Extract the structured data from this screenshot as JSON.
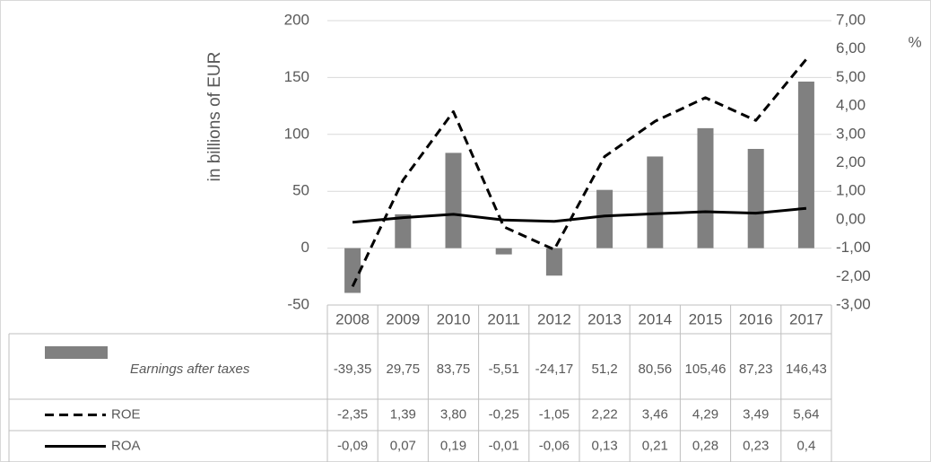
{
  "chart_data": {
    "type": "bar",
    "y_label": "in billions of EUR",
    "y2_label": "%",
    "categories": [
      "2008",
      "2009",
      "2010",
      "2011",
      "2012",
      "2013",
      "2014",
      "2015",
      "2016",
      "2017"
    ],
    "series": [
      {
        "name": "Earnings after taxes",
        "type": "bar",
        "axis": "y",
        "color": "#808080",
        "values": [
          -39.35,
          29.75,
          83.75,
          -5.51,
          -24.17,
          51.2,
          80.56,
          105.46,
          87.23,
          146.43
        ],
        "value_labels": [
          "-39,35",
          "29,75",
          "83,75",
          "-5,51",
          "-24,17",
          "51,2",
          "80,56",
          "105,46",
          "87,23",
          "146,43"
        ]
      },
      {
        "name": "ROE",
        "type": "line",
        "axis": "y2",
        "color": "#000000",
        "line_style": "dashed",
        "values": [
          -2.35,
          1.39,
          3.8,
          -0.25,
          -1.05,
          2.22,
          3.46,
          4.29,
          3.49,
          5.64
        ],
        "value_labels": [
          "-2,35",
          "1,39",
          "3,80",
          "-0,25",
          "-1,05",
          "2,22",
          "3,46",
          "4,29",
          "3,49",
          "5,64"
        ]
      },
      {
        "name": "ROA",
        "type": "line",
        "axis": "y2",
        "color": "#000000",
        "line_style": "solid",
        "values": [
          -0.09,
          0.07,
          0.19,
          -0.01,
          -0.06,
          0.13,
          0.21,
          0.28,
          0.23,
          0.4
        ],
        "value_labels": [
          "-0,09",
          "0,07",
          "0,19",
          "-0,01",
          "-0,06",
          "0,13",
          "0,21",
          "0,28",
          "0,23",
          "0,4"
        ]
      }
    ],
    "ylim": [
      -50,
      200
    ],
    "yticks": [
      -50,
      0,
      50,
      100,
      150,
      200
    ],
    "y2lim": [
      -3,
      7
    ],
    "y2ticks": [
      {
        "value": -3,
        "label": "-3,00"
      },
      {
        "value": -2,
        "label": "-2,00"
      },
      {
        "value": -1,
        "label": "-1,00"
      },
      {
        "value": 0,
        "label": "0,00"
      },
      {
        "value": 1,
        "label": "1,00"
      },
      {
        "value": 2,
        "label": "2,00"
      },
      {
        "value": 3,
        "label": "3,00"
      },
      {
        "value": 4,
        "label": "4,00"
      },
      {
        "value": 5,
        "label": "5,00"
      },
      {
        "value": 6,
        "label": "6,00"
      },
      {
        "value": 7,
        "label": "7,00"
      }
    ],
    "grid": true,
    "data_table": true
  }
}
